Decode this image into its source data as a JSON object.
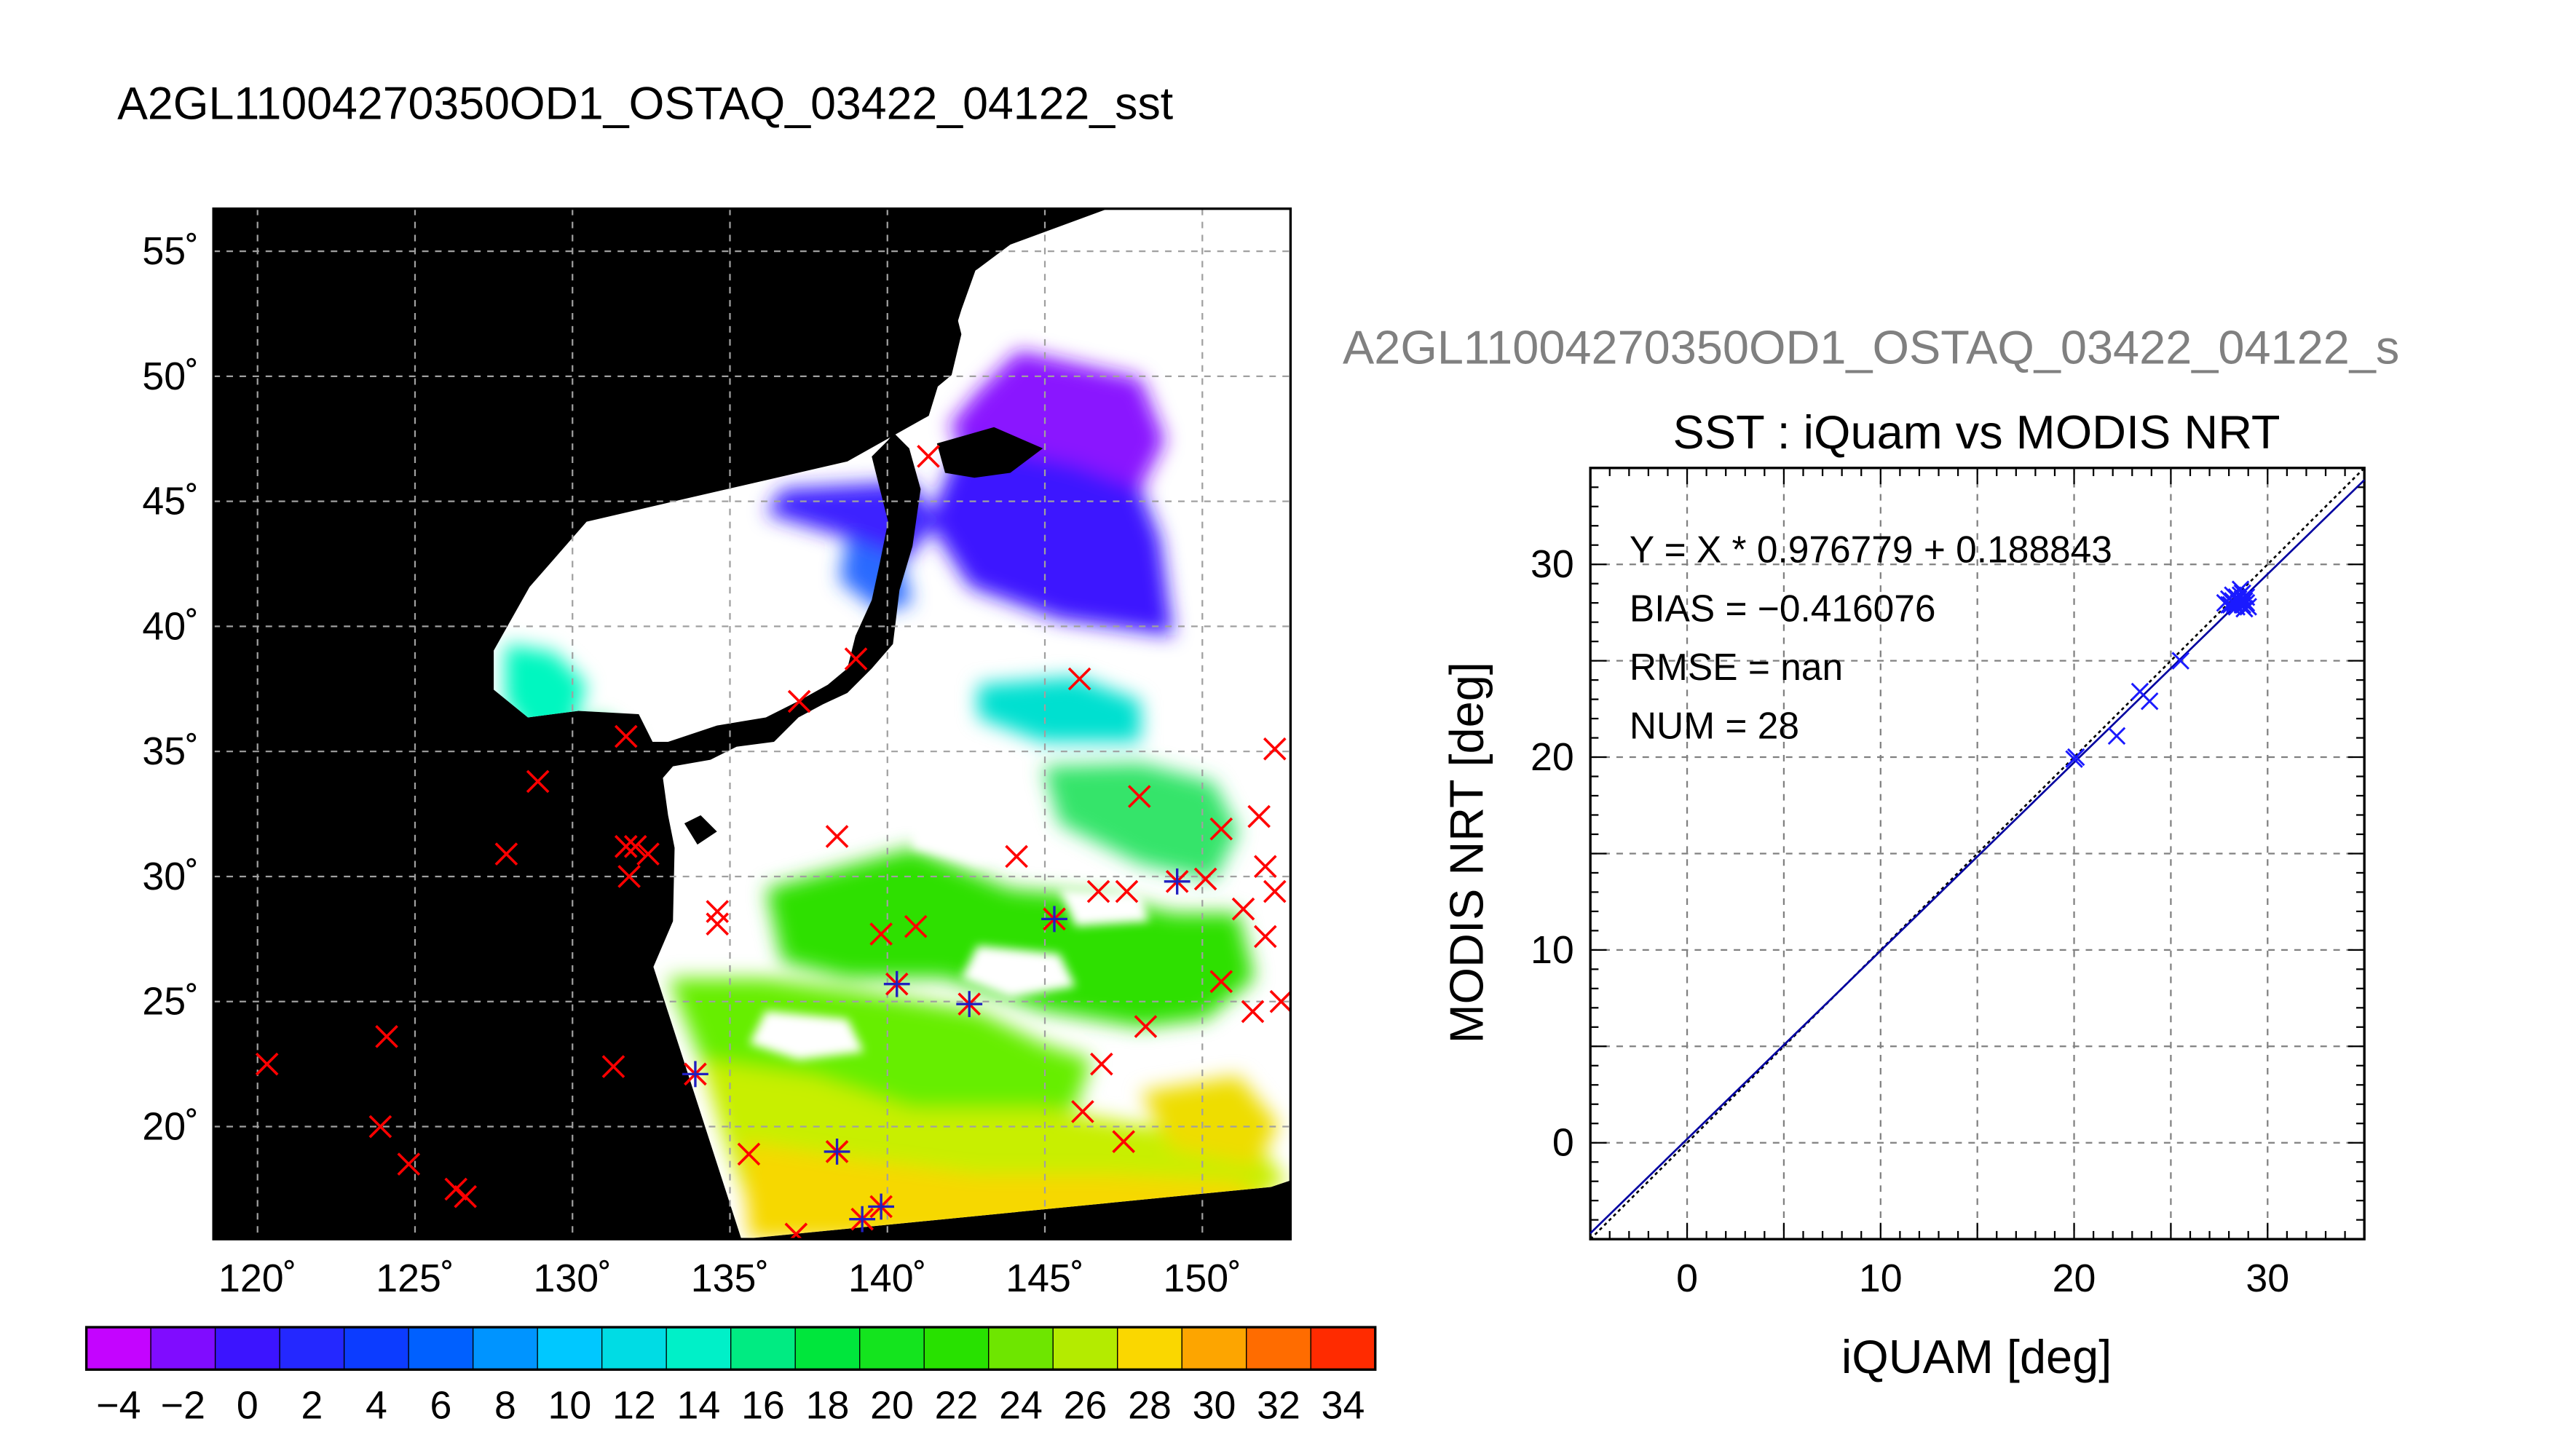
{
  "page": {
    "title": "A2GL11004270350OD1_OSTAQ_03422_04122_sst",
    "subtitle": "A2GL11004270350OD1_OSTAQ_03422_04122_s"
  },
  "chart_data": [
    {
      "type": "map",
      "x_ticks": [
        120,
        125,
        130,
        135,
        140,
        145,
        150
      ],
      "x_tick_labels": [
        "120˚",
        "125˚",
        "130˚",
        "135˚",
        "140˚",
        "145˚",
        "150˚"
      ],
      "y_ticks": [
        20,
        25,
        30,
        35,
        40,
        45,
        50,
        55
      ],
      "y_tick_labels": [
        "20˚",
        "25˚",
        "30˚",
        "35˚",
        "40˚",
        "45˚",
        "50˚",
        "55˚"
      ],
      "xlim": [
        118.6,
        152.8
      ],
      "ylim": [
        15.5,
        56.7
      ],
      "grid": true,
      "colorbar": {
        "min": -5,
        "max": 35,
        "step": 2,
        "labels": [
          "−4",
          "−2",
          "0",
          "2",
          "4",
          "6",
          "8",
          "10",
          "12",
          "14",
          "16",
          "18",
          "20",
          "22",
          "24",
          "26",
          "28",
          "30",
          "32",
          "34"
        ],
        "label_values": [
          -4,
          -2,
          0,
          2,
          4,
          6,
          8,
          10,
          12,
          14,
          16,
          18,
          20,
          22,
          24,
          26,
          28,
          30,
          32,
          34
        ]
      },
      "red_markers": [
        [
          120.3,
          22.5
        ],
        [
          124.1,
          23.6
        ],
        [
          123.9,
          20.0
        ],
        [
          124.8,
          18.5
        ],
        [
          126.3,
          17.5
        ],
        [
          126.6,
          17.2
        ],
        [
          127.9,
          30.9
        ],
        [
          128.9,
          33.8
        ],
        [
          131.3,
          22.4
        ],
        [
          131.7,
          35.6
        ],
        [
          131.7,
          31.2
        ],
        [
          131.8,
          30.0
        ],
        [
          132.0,
          31.2
        ],
        [
          132.4,
          30.9
        ],
        [
          134.6,
          28.6
        ],
        [
          134.6,
          28.1
        ],
        [
          133.9,
          22.1
        ],
        [
          135.6,
          18.9
        ],
        [
          137.2,
          37.0
        ],
        [
          139.0,
          38.7
        ],
        [
          138.4,
          31.6
        ],
        [
          139.8,
          27.7
        ],
        [
          140.9,
          28.0
        ],
        [
          140.3,
          25.7
        ],
        [
          138.4,
          19.0
        ],
        [
          139.2,
          16.3
        ],
        [
          139.8,
          16.8
        ],
        [
          137.1,
          15.7
        ],
        [
          142.6,
          24.9
        ],
        [
          144.1,
          30.8
        ],
        [
          145.3,
          28.3
        ],
        [
          146.1,
          37.9
        ],
        [
          146.7,
          29.4
        ],
        [
          147.6,
          29.4
        ],
        [
          146.8,
          22.5
        ],
        [
          146.2,
          20.6
        ],
        [
          147.5,
          19.4
        ],
        [
          148.0,
          33.2
        ],
        [
          148.2,
          24.0
        ],
        [
          149.2,
          29.8
        ],
        [
          150.1,
          29.9
        ],
        [
          150.6,
          31.9
        ],
        [
          150.6,
          25.8
        ],
        [
          151.3,
          28.7
        ],
        [
          151.6,
          24.6
        ],
        [
          151.8,
          32.4
        ],
        [
          152.0,
          30.4
        ],
        [
          152.0,
          27.6
        ],
        [
          152.3,
          35.1
        ],
        [
          152.3,
          29.4
        ],
        [
          152.5,
          25.0
        ],
        [
          141.3,
          46.8
        ]
      ],
      "blue_markers": [
        [
          133.9,
          22.1
        ],
        [
          138.4,
          19.0
        ],
        [
          139.2,
          16.3
        ],
        [
          139.8,
          16.8
        ],
        [
          140.3,
          25.7
        ],
        [
          142.6,
          24.9
        ],
        [
          145.3,
          28.3
        ],
        [
          149.2,
          29.8
        ]
      ]
    },
    {
      "type": "scatter",
      "title": "SST : iQuam vs MODIS NRT",
      "xlabel": "iQUAM [deg]",
      "ylabel": "MODIS NRT [deg]",
      "xlim": [
        -5,
        35
      ],
      "ylim": [
        -5,
        35
      ],
      "x_ticks": [
        0,
        10,
        20,
        30
      ],
      "y_ticks": [
        0,
        10,
        20,
        30
      ],
      "grid": true,
      "stats": [
        "Y = X * 0.976779 + 0.188843",
        "BIAS = −0.416076",
        "RMSE = nan",
        "NUM = 28"
      ],
      "fit": {
        "slope": 0.976779,
        "intercept": 0.188843
      },
      "points": [
        [
          20.0,
          19.9
        ],
        [
          20.1,
          20.0
        ],
        [
          22.2,
          21.1
        ],
        [
          23.4,
          23.4
        ],
        [
          23.9,
          22.9
        ],
        [
          25.5,
          25.0
        ],
        [
          27.8,
          28.0
        ],
        [
          28.0,
          27.9
        ],
        [
          28.2,
          28.1
        ],
        [
          28.4,
          27.8
        ],
        [
          28.5,
          28.2
        ],
        [
          28.6,
          28.7
        ],
        [
          28.7,
          27.9
        ],
        [
          28.8,
          28.1
        ],
        [
          28.9,
          28.3
        ],
        [
          29.0,
          27.8
        ],
        [
          28.6,
          28.4
        ],
        [
          28.3,
          28.0
        ],
        [
          28.0,
          28.2
        ],
        [
          28.7,
          28.5
        ],
        [
          28.1,
          27.9
        ],
        [
          28.9,
          28.0
        ],
        [
          28.4,
          28.3
        ],
        [
          28.8,
          27.7
        ],
        [
          28.2,
          28.4
        ],
        [
          28.5,
          28.0
        ],
        [
          28.7,
          28.2
        ],
        [
          28.3,
          27.9
        ]
      ]
    }
  ]
}
